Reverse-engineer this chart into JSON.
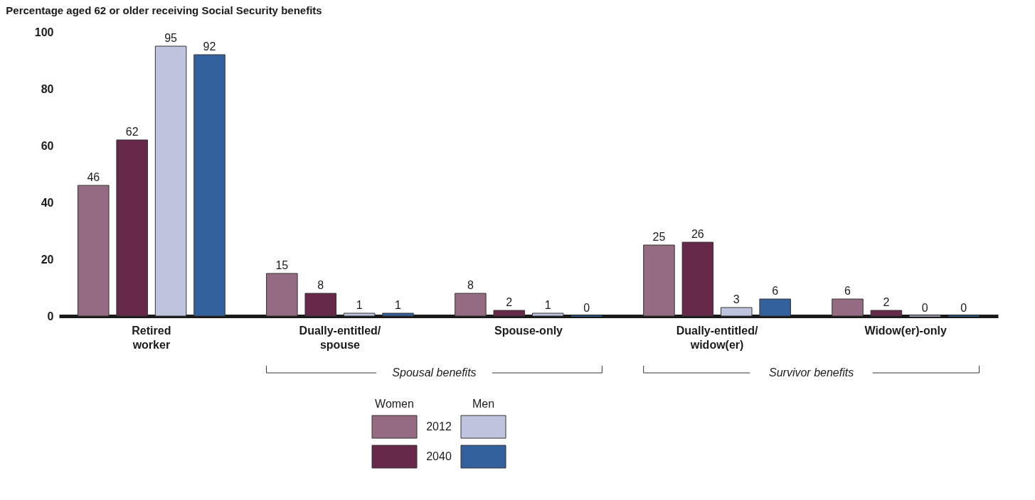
{
  "chart_data": {
    "type": "bar",
    "title": "Percentage aged 62 or older receiving Social Security benefits",
    "categories": [
      "Retired worker",
      "Dually-entitled/ spouse",
      "Spouse-only",
      "Dually-entitled/ widow(er)",
      "Widow(er)-only"
    ],
    "series": [
      {
        "name": "2012",
        "color": "#946b80",
        "values": [
          46,
          15,
          8,
          25,
          6
        ]
      },
      {
        "name": "2040",
        "color": "#66294a",
        "values": [
          62,
          8,
          2,
          26,
          2
        ]
      },
      {
        "color": "#bec3de",
        "values": [
          95,
          1,
          1,
          3,
          0
        ]
      },
      {
        "color": "#33619e",
        "values": [
          92,
          1,
          0,
          6,
          0
        ]
      }
    ],
    "ylim": [
      0,
      100
    ],
    "yticks": [
      0,
      20,
      40,
      60,
      80,
      100
    ],
    "grid": false,
    "data_labels": true,
    "legend": "bottom",
    "annotations": [
      "Spousal benefits",
      "Survivor benefits",
      "Women",
      "Men"
    ]
  }
}
